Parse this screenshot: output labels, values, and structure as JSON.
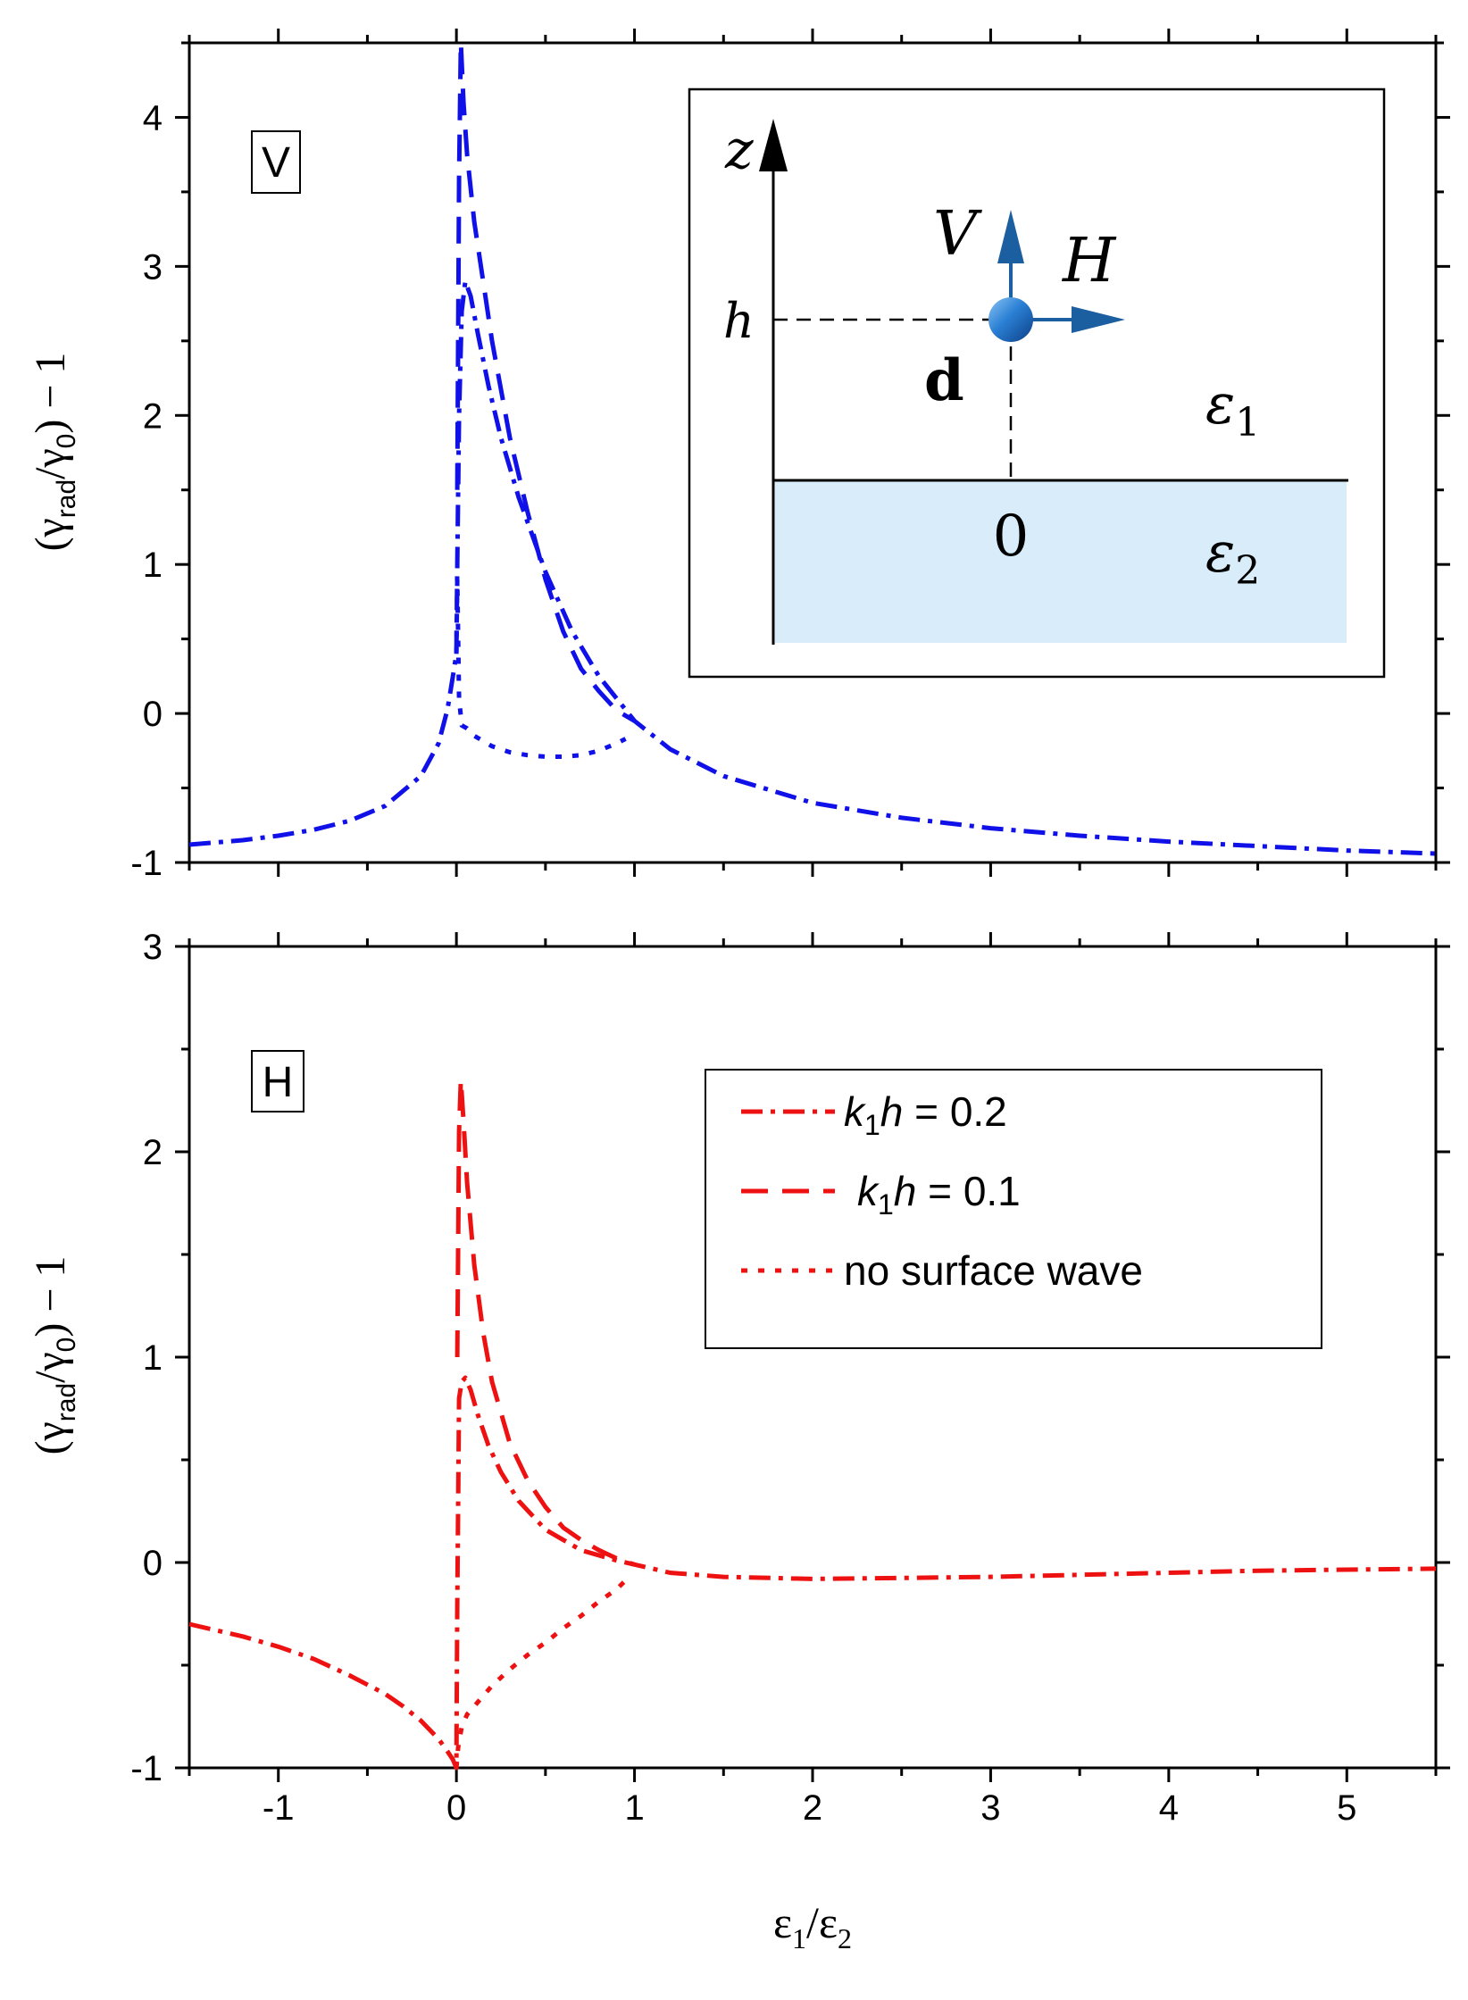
{
  "colors": {
    "top_series": "#1010e8",
    "bottom_series": "#ee1111",
    "inset_arrow": "#1b5fa0",
    "inset_medium2": "#d8ecfa",
    "inset_sphere": "#2a7fd4"
  },
  "figure": {
    "xlabel_main": "ε",
    "xlabel_sub1": "1",
    "xlabel_slash": "/ε",
    "xlabel_sub2": "2",
    "ylabel_open": "(γ",
    "ylabel_rad": "rad",
    "ylabel_slash": "/γ",
    "ylabel_zero": "0",
    "ylabel_close": ") − 1"
  },
  "chart_data": [
    {
      "type": "line",
      "panel_label": "V",
      "xlim": [
        -1.5,
        5.5
      ],
      "ylim": [
        -1,
        4.5
      ],
      "yticks": [
        {
          "value": -1,
          "label": "-1"
        },
        {
          "value": 0,
          "label": "0"
        },
        {
          "value": 1,
          "label": "1"
        },
        {
          "value": 2,
          "label": "2"
        },
        {
          "value": 3,
          "label": "3"
        },
        {
          "value": 4,
          "label": "4"
        }
      ],
      "ylabel": "(γrad/γ0) − 1",
      "series": [
        {
          "name": "k1h = 0.2",
          "style": "dashdot",
          "x": [
            -1.5,
            -1.2,
            -1.0,
            -0.8,
            -0.6,
            -0.4,
            -0.2,
            -0.1,
            -0.05,
            -0.02,
            0.0,
            0.005,
            0.015,
            0.03,
            0.05,
            0.08,
            0.12,
            0.18,
            0.25,
            0.35,
            0.5,
            0.65,
            0.8,
            1.0,
            1.2,
            1.5,
            2.0,
            2.5,
            3.0,
            3.5,
            4.0,
            4.5,
            5.0,
            5.5
          ],
          "y": [
            -0.88,
            -0.85,
            -0.82,
            -0.78,
            -0.72,
            -0.62,
            -0.42,
            -0.2,
            0.03,
            0.25,
            0.4,
            1.0,
            2.0,
            2.7,
            2.9,
            2.8,
            2.55,
            2.2,
            1.85,
            1.45,
            0.95,
            0.55,
            0.25,
            -0.05,
            -0.24,
            -0.42,
            -0.6,
            -0.7,
            -0.77,
            -0.82,
            -0.86,
            -0.89,
            -0.92,
            -0.94
          ]
        },
        {
          "name": "k1h = 0.1",
          "style": "dash",
          "x": [
            0.005,
            0.015,
            0.025,
            0.04,
            0.06,
            0.1,
            0.15,
            0.2,
            0.3,
            0.4,
            0.5,
            0.6,
            0.7,
            0.8,
            0.9,
            1.0
          ],
          "y": [
            1.5,
            3.6,
            4.5,
            4.1,
            3.75,
            3.3,
            2.9,
            2.5,
            1.85,
            1.35,
            0.9,
            0.55,
            0.3,
            0.15,
            0.02,
            -0.05
          ]
        },
        {
          "name": "no surface wave",
          "style": "dot",
          "x": [
            0.0,
            0.005,
            0.015,
            0.03,
            0.06,
            0.1,
            0.2,
            0.3,
            0.4,
            0.5,
            0.6,
            0.7,
            0.8,
            0.9,
            0.95
          ],
          "y": [
            0.4,
            0.9,
            0.1,
            -0.08,
            -0.1,
            -0.15,
            -0.22,
            -0.26,
            -0.28,
            -0.29,
            -0.29,
            -0.28,
            -0.25,
            -0.2,
            -0.17
          ]
        }
      ]
    },
    {
      "type": "line",
      "panel_label": "H",
      "xlim": [
        -1.5,
        5.5
      ],
      "ylim": [
        -1,
        3
      ],
      "xticks": [
        {
          "value": -1,
          "label": "-1"
        },
        {
          "value": 0,
          "label": "0"
        },
        {
          "value": 1,
          "label": "1"
        },
        {
          "value": 2,
          "label": "2"
        },
        {
          "value": 3,
          "label": "3"
        },
        {
          "value": 4,
          "label": "4"
        },
        {
          "value": 5,
          "label": "5"
        }
      ],
      "yticks": [
        {
          "value": -1,
          "label": "-1"
        },
        {
          "value": 0,
          "label": "0"
        },
        {
          "value": 1,
          "label": "1"
        },
        {
          "value": 2,
          "label": "2"
        },
        {
          "value": 3,
          "label": "3"
        }
      ],
      "xlabel": "ε1/ε2",
      "ylabel": "(γrad/γ0) − 1",
      "legend": {
        "position": "top-right",
        "entries": [
          {
            "k": "k",
            "sub": "1",
            "h": "h",
            "rest": " = 0.2",
            "style": "dashdot"
          },
          {
            "k": "k",
            "sub": "1",
            "h": "h",
            "rest": " = 0.1",
            "style": "dash"
          },
          {
            "text": "no surface wave",
            "style": "dot"
          }
        ]
      },
      "series": [
        {
          "name": "k1h = 0.2",
          "style": "dashdot",
          "x": [
            -1.5,
            -1.2,
            -1.0,
            -0.8,
            -0.6,
            -0.4,
            -0.3,
            -0.2,
            -0.1,
            -0.05,
            -0.02,
            0.0,
            0.005,
            0.015,
            0.03,
            0.05,
            0.08,
            0.12,
            0.18,
            0.25,
            0.35,
            0.5,
            0.7,
            0.9,
            1.0,
            1.2,
            1.5,
            2.0,
            2.5,
            3.0,
            3.5,
            4.0,
            4.5,
            5.0,
            5.5
          ],
          "y": [
            -0.3,
            -0.36,
            -0.41,
            -0.47,
            -0.55,
            -0.64,
            -0.7,
            -0.77,
            -0.86,
            -0.92,
            -0.96,
            -1.0,
            -0.2,
            0.8,
            0.88,
            0.9,
            0.84,
            0.72,
            0.57,
            0.44,
            0.3,
            0.16,
            0.06,
            0.01,
            -0.01,
            -0.05,
            -0.07,
            -0.08,
            -0.075,
            -0.07,
            -0.06,
            -0.05,
            -0.04,
            -0.035,
            -0.03
          ]
        },
        {
          "name": "k1h = 0.1",
          "style": "dash",
          "x": [
            0.005,
            0.015,
            0.025,
            0.04,
            0.06,
            0.1,
            0.15,
            0.2,
            0.3,
            0.4,
            0.5,
            0.6,
            0.7,
            0.8,
            0.9,
            1.0
          ],
          "y": [
            1.0,
            2.1,
            2.35,
            2.15,
            1.85,
            1.45,
            1.12,
            0.88,
            0.58,
            0.4,
            0.27,
            0.17,
            0.11,
            0.06,
            0.02,
            -0.01
          ]
        },
        {
          "name": "no surface wave",
          "style": "dot",
          "x": [
            0.0,
            0.01,
            0.03,
            0.06,
            0.1,
            0.2,
            0.3,
            0.4,
            0.5,
            0.6,
            0.7,
            0.8,
            0.9,
            0.97
          ],
          "y": [
            -1.0,
            -0.9,
            -0.8,
            -0.74,
            -0.7,
            -0.6,
            -0.52,
            -0.45,
            -0.39,
            -0.32,
            -0.26,
            -0.19,
            -0.13,
            -0.07
          ]
        }
      ]
    }
  ],
  "inset": {
    "z_label": "z",
    "v_label": "V",
    "h_arrow_label": "H",
    "h_level_label": "h",
    "d_label": "d",
    "zero_label": "0",
    "eps1_main": "ε",
    "eps1_sub": "1",
    "eps2_main": "ε",
    "eps2_sub": "2"
  }
}
